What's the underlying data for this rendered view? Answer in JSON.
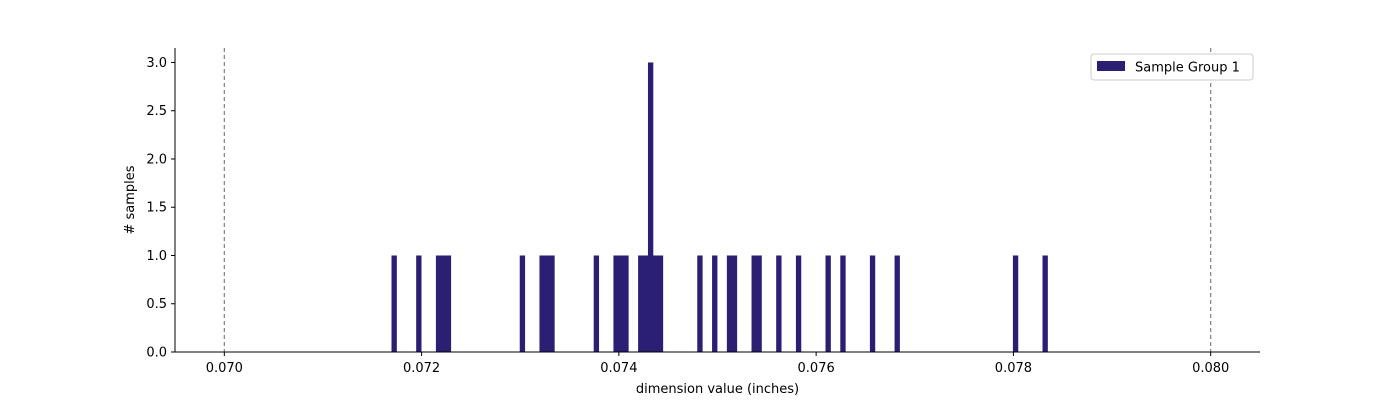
{
  "chart_data": {
    "type": "bar",
    "xlabel": "dimension value (inches)",
    "ylabel": "# samples",
    "xlim": [
      0.0695,
      0.0805
    ],
    "ylim": [
      0,
      3.15
    ],
    "x_ticks": [
      "0.070",
      "0.072",
      "0.074",
      "0.076",
      "0.078",
      "0.080"
    ],
    "y_ticks": [
      "0.0",
      "0.5",
      "1.0",
      "1.5",
      "2.0",
      "2.5",
      "3.0"
    ],
    "bin_width": 5e-05,
    "spec_limits": [
      0.07,
      0.08
    ],
    "grid": false,
    "legend_position": "top-right",
    "series": [
      {
        "name": "Sample Group 1",
        "color": "#2a1f72",
        "bins": [
          {
            "x": 0.07172,
            "count": 1
          },
          {
            "x": 0.07197,
            "count": 1
          },
          {
            "x": 0.07217,
            "count": 1
          },
          {
            "x": 0.07222,
            "count": 1
          },
          {
            "x": 0.07227,
            "count": 1
          },
          {
            "x": 0.07302,
            "count": 1
          },
          {
            "x": 0.07322,
            "count": 1
          },
          {
            "x": 0.07327,
            "count": 1
          },
          {
            "x": 0.07332,
            "count": 1
          },
          {
            "x": 0.07377,
            "count": 1
          },
          {
            "x": 0.07397,
            "count": 1
          },
          {
            "x": 0.07402,
            "count": 1
          },
          {
            "x": 0.07407,
            "count": 1
          },
          {
            "x": 0.07422,
            "count": 1
          },
          {
            "x": 0.07427,
            "count": 1
          },
          {
            "x": 0.07432,
            "count": 3
          },
          {
            "x": 0.07437,
            "count": 1
          },
          {
            "x": 0.07442,
            "count": 1
          },
          {
            "x": 0.07482,
            "count": 1
          },
          {
            "x": 0.07497,
            "count": 1
          },
          {
            "x": 0.07512,
            "count": 1
          },
          {
            "x": 0.07517,
            "count": 1
          },
          {
            "x": 0.07537,
            "count": 1
          },
          {
            "x": 0.07542,
            "count": 1
          },
          {
            "x": 0.07562,
            "count": 1
          },
          {
            "x": 0.07582,
            "count": 1
          },
          {
            "x": 0.07612,
            "count": 1
          },
          {
            "x": 0.07627,
            "count": 1
          },
          {
            "x": 0.07657,
            "count": 1
          },
          {
            "x": 0.07682,
            "count": 1
          },
          {
            "x": 0.07802,
            "count": 1
          },
          {
            "x": 0.07832,
            "count": 1
          }
        ]
      }
    ]
  }
}
